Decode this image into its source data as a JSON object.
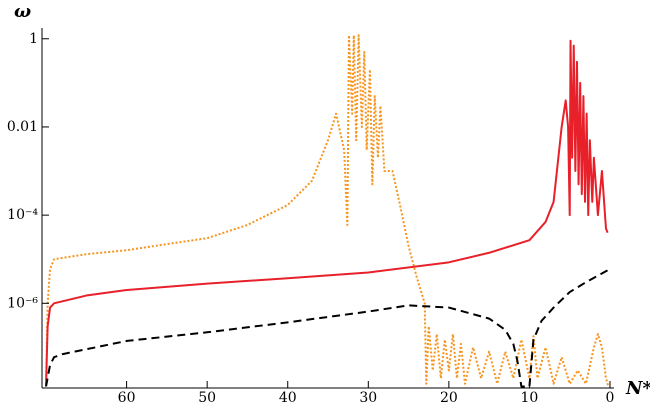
{
  "chart_data": {
    "type": "line",
    "x_label": "N*",
    "y_label": "ω",
    "log_y": true,
    "xlim": [
      70.5,
      0
    ],
    "ylim": [
      1.2e-08,
      1.5
    ],
    "xticks": [
      60,
      50,
      40,
      30,
      20,
      10,
      0
    ],
    "yticks": [
      {
        "value": 1e-06,
        "label": "10⁻⁶"
      },
      {
        "value": 0.0001,
        "label": "10⁻⁴"
      },
      0.01,
      1
    ],
    "series": [
      {
        "name": "orange",
        "color": "#f7941d",
        "style": "dotted",
        "x": [
          70,
          69.8,
          69.5,
          69,
          65,
          60,
          55,
          50,
          45,
          40,
          37,
          35,
          34,
          33,
          32.6,
          32.4,
          32,
          31.8,
          31.5,
          31.2,
          30.8,
          30.5,
          30.2,
          29.8,
          29.5,
          29.2,
          28.8,
          28.5,
          28,
          27,
          26,
          25,
          24,
          23,
          22.8,
          22.5,
          22,
          21.5,
          21,
          20.5,
          20,
          19.5,
          19,
          18.5,
          18,
          17,
          16,
          15,
          14,
          13,
          12,
          11,
          10,
          9.5,
          9,
          8,
          7,
          6,
          5,
          4,
          3,
          2,
          1.5,
          1,
          0.5,
          0.2
        ],
        "values": [
          1.5e-08,
          1e-06,
          6e-06,
          1e-05,
          1.3e-05,
          1.6e-05,
          2.2e-05,
          3e-05,
          6e-05,
          0.00017,
          0.0006,
          0.005,
          0.02,
          0.003,
          6e-05,
          1.2,
          0.02,
          1.2,
          0.005,
          1.2,
          0.01,
          0.5,
          0.003,
          0.2,
          0.0005,
          0.05,
          0.002,
          0.03,
          0.001,
          0.001,
          0.00015,
          2e-05,
          4e-06,
          1e-06,
          1.5e-08,
          3e-07,
          3e-08,
          2e-07,
          2e-08,
          1.5e-07,
          3e-08,
          2e-07,
          2e-08,
          1.2e-07,
          1.5e-08,
          1e-07,
          2e-08,
          8e-08,
          1.5e-08,
          8e-08,
          2e-08,
          1.5e-07,
          2e-08,
          1.8e-07,
          2e-08,
          1e-07,
          1.5e-08,
          6e-08,
          1.5e-08,
          3e-08,
          1.5e-08,
          1e-07,
          2e-07,
          1e-07,
          2e-08,
          1.3e-08
        ]
      },
      {
        "name": "red",
        "color": "#e8202a",
        "style": "solid",
        "x": [
          70,
          69.8,
          69.5,
          69,
          65,
          60,
          50,
          40,
          30,
          20,
          15,
          10,
          8,
          7,
          6,
          5.5,
          5.2,
          5,
          4.9,
          4.7,
          4.5,
          4.3,
          4.1,
          3.9,
          3.7,
          3.5,
          3.3,
          3.1,
          2.9,
          2.7,
          2.5,
          2.2,
          2,
          1.5,
          1,
          0.5,
          0.3
        ],
        "values": [
          1.3e-08,
          3e-07,
          8e-07,
          1e-06,
          1.5e-06,
          2e-06,
          2.8e-06,
          3.7e-06,
          5e-06,
          8.5e-06,
          1.4e-05,
          2.7e-05,
          7e-05,
          0.0002,
          0.01,
          0.04,
          0.01,
          0.0001,
          0.9,
          0.002,
          0.7,
          0.001,
          0.3,
          0.0005,
          0.1,
          0.0003,
          0.05,
          0.0002,
          0.02,
          0.0001,
          0.005,
          0.0002,
          0.002,
          0.0001,
          0.001,
          5e-05,
          4e-05
        ]
      },
      {
        "name": "black",
        "color": "#000000",
        "style": "dashed",
        "x": [
          70,
          69.5,
          69,
          68,
          60,
          50,
          40,
          30,
          25,
          20,
          15,
          13,
          12,
          11.5,
          11,
          10,
          9.5,
          8.5,
          7,
          5,
          3,
          0
        ],
        "values": [
          1.3e-08,
          4e-08,
          6e-08,
          7e-08,
          1.4e-07,
          2.2e-07,
          3.7e-07,
          6.5e-07,
          9e-07,
          8e-07,
          4.5e-07,
          2.5e-07,
          1.2e-07,
          5e-08,
          1.3e-08,
          1.3e-08,
          1.5e-07,
          4e-07,
          8e-07,
          1.8e-06,
          3e-06,
          6e-06
        ]
      }
    ]
  }
}
